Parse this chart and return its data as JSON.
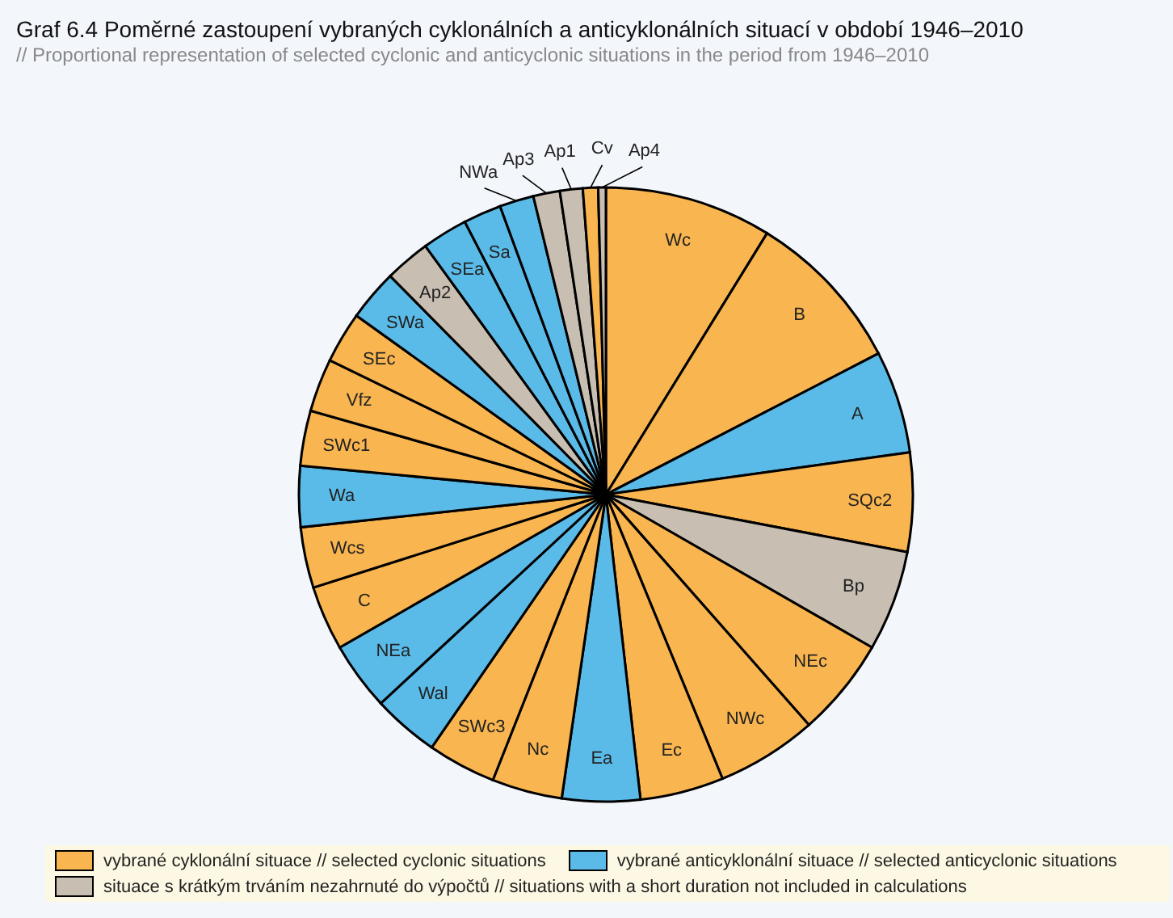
{
  "chart_data": {
    "type": "pie",
    "title": "Graf 6.4  Poměrné zastoupení vybraných cyklonálních a anticyklonálních situací v období 1946–2010",
    "subtitle": "// Proportional representation of selected cyclonic and anticyclonic situations in the period from 1946–2010",
    "categories": [
      "Wc",
      "B",
      "A",
      "SQc2",
      "Bp",
      "NEc",
      "NWc",
      "Ec",
      "Ea",
      "Nc",
      "SWc3",
      "Wal",
      "NEa",
      "C",
      "Wcs",
      "Wa",
      "SWc1",
      "Vfz",
      "SEc",
      "SWa",
      "Ap2",
      "SEa",
      "Sa",
      "NWa",
      "Ap3",
      "Ap1",
      "Cv",
      "Ap4"
    ],
    "values": [
      8.8,
      8.6,
      5.4,
      5.2,
      5.3,
      5.2,
      5.3,
      4.4,
      4.1,
      3.7,
      3.6,
      3.5,
      3.6,
      3.4,
      3.2,
      3.2,
      2.9,
      2.8,
      2.7,
      2.7,
      2.4,
      2.4,
      2.0,
      1.8,
      1.4,
      1.2,
      0.8,
      0.4
    ],
    "colors": [
      "#f9b54f",
      "#f9b54f",
      "#5bbbe8",
      "#f9b54f",
      "#c8bfb2",
      "#f9b54f",
      "#f9b54f",
      "#f9b54f",
      "#5bbbe8",
      "#f9b54f",
      "#f9b54f",
      "#5bbbe8",
      "#5bbbe8",
      "#f9b54f",
      "#f9b54f",
      "#5bbbe8",
      "#f9b54f",
      "#f9b54f",
      "#f9b54f",
      "#5bbbe8",
      "#c8bfb2",
      "#5bbbe8",
      "#5bbbe8",
      "#5bbbe8",
      "#c8bfb2",
      "#c8bfb2",
      "#f9b54f",
      "#c8bfb2"
    ],
    "annotations": [
      "vybrané cyklonální situace // selected cyclonic situations",
      "vybrané anticyklonální situace // selected anticyclonic situations",
      "situace s krátkým trváním nezahrnuté do výpočtů // situations with a short duration not included in calculations"
    ]
  }
}
